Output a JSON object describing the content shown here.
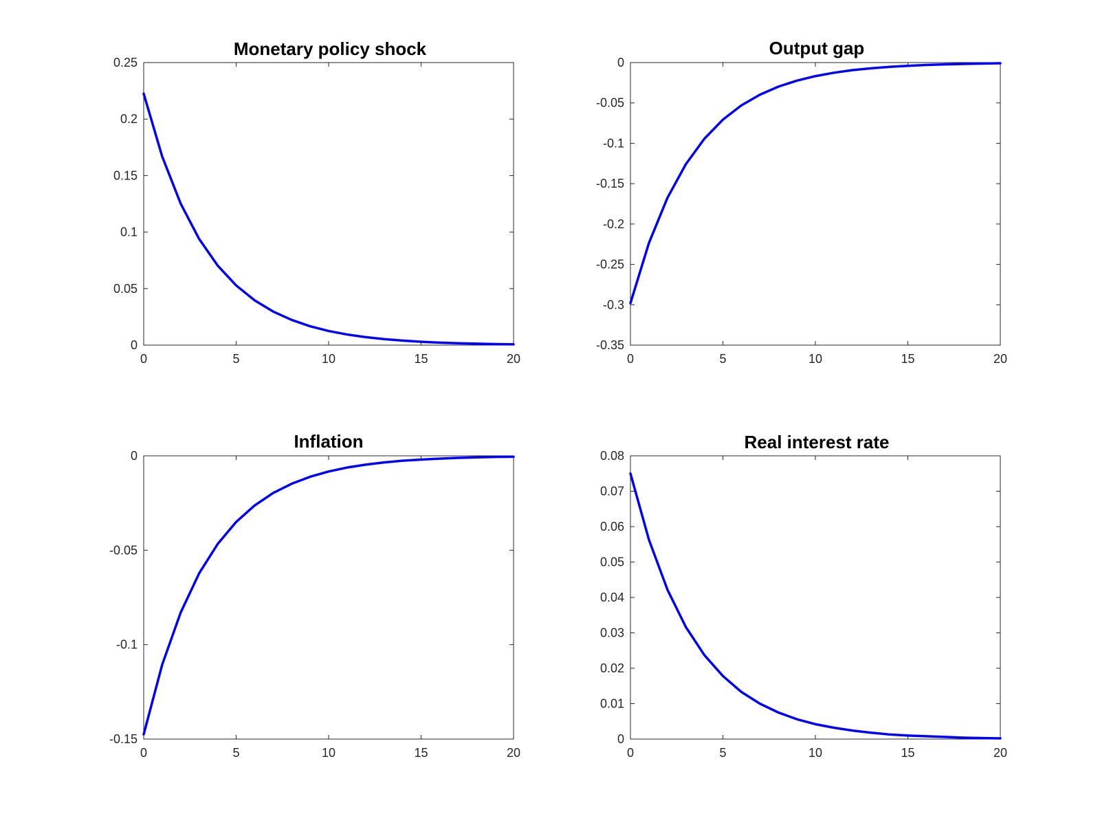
{
  "style": {
    "line_color": "#0000ff",
    "axes_color": "#262626",
    "background": "#ffffff"
  },
  "chart_data": [
    {
      "type": "line",
      "title": "Monetary policy shock",
      "xlabel": "",
      "ylabel": "",
      "xlim": [
        0,
        20
      ],
      "ylim": [
        0,
        0.25
      ],
      "xticks": [
        0,
        5,
        10,
        15,
        20
      ],
      "xtick_labels": [
        "0",
        "5",
        "10",
        "15",
        "20"
      ],
      "yticks": [
        0,
        0.05,
        0.1,
        0.15,
        0.2,
        0.25
      ],
      "ytick_labels": [
        "0",
        "0.05",
        "0.1",
        "0.15",
        "0.2",
        "0.25"
      ],
      "grid": false,
      "legend": "none",
      "series": [
        {
          "x": [
            0,
            1,
            2,
            3,
            4,
            5,
            6,
            7,
            8,
            9,
            10,
            11,
            12,
            13,
            14,
            15,
            16,
            17,
            18,
            19,
            20
          ],
          "y": [
            0.2225,
            0.1669,
            0.1252,
            0.0939,
            0.0704,
            0.0528,
            0.0396,
            0.0297,
            0.0223,
            0.0167,
            0.0125,
            0.0094,
            0.0071,
            0.0053,
            0.004,
            0.003,
            0.0022,
            0.0017,
            0.0013,
            0.0009,
            0.0007
          ]
        }
      ]
    },
    {
      "type": "line",
      "title": "Output gap",
      "xlabel": "",
      "ylabel": "",
      "xlim": [
        0,
        20
      ],
      "ylim": [
        -0.35,
        0
      ],
      "xticks": [
        0,
        5,
        10,
        15,
        20
      ],
      "xtick_labels": [
        "0",
        "5",
        "10",
        "15",
        "20"
      ],
      "yticks": [
        -0.35,
        -0.3,
        -0.25,
        -0.2,
        -0.15,
        -0.1,
        -0.05,
        0
      ],
      "ytick_labels": [
        "-0.35",
        "-0.3",
        "-0.25",
        "-0.2",
        "-0.15",
        "-0.1",
        "-0.05",
        "0"
      ],
      "grid": false,
      "legend": "none",
      "series": [
        {
          "x": [
            0,
            1,
            2,
            3,
            4,
            5,
            6,
            7,
            8,
            9,
            10,
            11,
            12,
            13,
            14,
            15,
            16,
            17,
            18,
            19,
            20
          ],
          "y": [
            -0.298,
            -0.2235,
            -0.1676,
            -0.1257,
            -0.0943,
            -0.0707,
            -0.053,
            -0.0398,
            -0.0298,
            -0.0224,
            -0.0168,
            -0.0126,
            -0.0094,
            -0.0071,
            -0.0053,
            -0.004,
            -0.003,
            -0.0022,
            -0.0017,
            -0.0013,
            -0.0009
          ]
        }
      ]
    },
    {
      "type": "line",
      "title": "Inflation",
      "xlabel": "",
      "ylabel": "",
      "xlim": [
        0,
        20
      ],
      "ylim": [
        -0.15,
        0
      ],
      "xticks": [
        0,
        5,
        10,
        15,
        20
      ],
      "xtick_labels": [
        "0",
        "5",
        "10",
        "15",
        "20"
      ],
      "yticks": [
        -0.15,
        -0.1,
        -0.05,
        0
      ],
      "ytick_labels": [
        "-0.15",
        "-0.1",
        "-0.05",
        "0"
      ],
      "grid": false,
      "legend": "none",
      "series": [
        {
          "x": [
            0,
            1,
            2,
            3,
            4,
            5,
            6,
            7,
            8,
            9,
            10,
            11,
            12,
            13,
            14,
            15,
            16,
            17,
            18,
            19,
            20
          ],
          "y": [
            -0.1475,
            -0.1106,
            -0.083,
            -0.0622,
            -0.0467,
            -0.035,
            -0.0263,
            -0.0197,
            -0.0148,
            -0.0111,
            -0.0083,
            -0.0062,
            -0.0047,
            -0.0035,
            -0.0026,
            -0.002,
            -0.0015,
            -0.0011,
            -0.0008,
            -0.0006,
            -0.0005
          ]
        }
      ]
    },
    {
      "type": "line",
      "title": "Real interest rate",
      "xlabel": "",
      "ylabel": "",
      "xlim": [
        0,
        20
      ],
      "ylim": [
        0,
        0.08
      ],
      "xticks": [
        0,
        5,
        10,
        15,
        20
      ],
      "xtick_labels": [
        "0",
        "5",
        "10",
        "15",
        "20"
      ],
      "yticks": [
        0,
        0.01,
        0.02,
        0.03,
        0.04,
        0.05,
        0.06,
        0.07,
        0.08
      ],
      "ytick_labels": [
        "0",
        "0.01",
        "0.02",
        "0.03",
        "0.04",
        "0.05",
        "0.06",
        "0.07",
        "0.08"
      ],
      "grid": false,
      "legend": "none",
      "series": [
        {
          "x": [
            0,
            1,
            2,
            3,
            4,
            5,
            6,
            7,
            8,
            9,
            10,
            11,
            12,
            13,
            14,
            15,
            16,
            17,
            18,
            19,
            20
          ],
          "y": [
            0.075,
            0.0563,
            0.0422,
            0.0316,
            0.0237,
            0.0178,
            0.0133,
            0.01,
            0.0075,
            0.0056,
            0.0042,
            0.0032,
            0.0024,
            0.0018,
            0.0013,
            0.001,
            0.0008,
            0.0006,
            0.0004,
            0.0003,
            0.0002
          ]
        }
      ]
    }
  ]
}
